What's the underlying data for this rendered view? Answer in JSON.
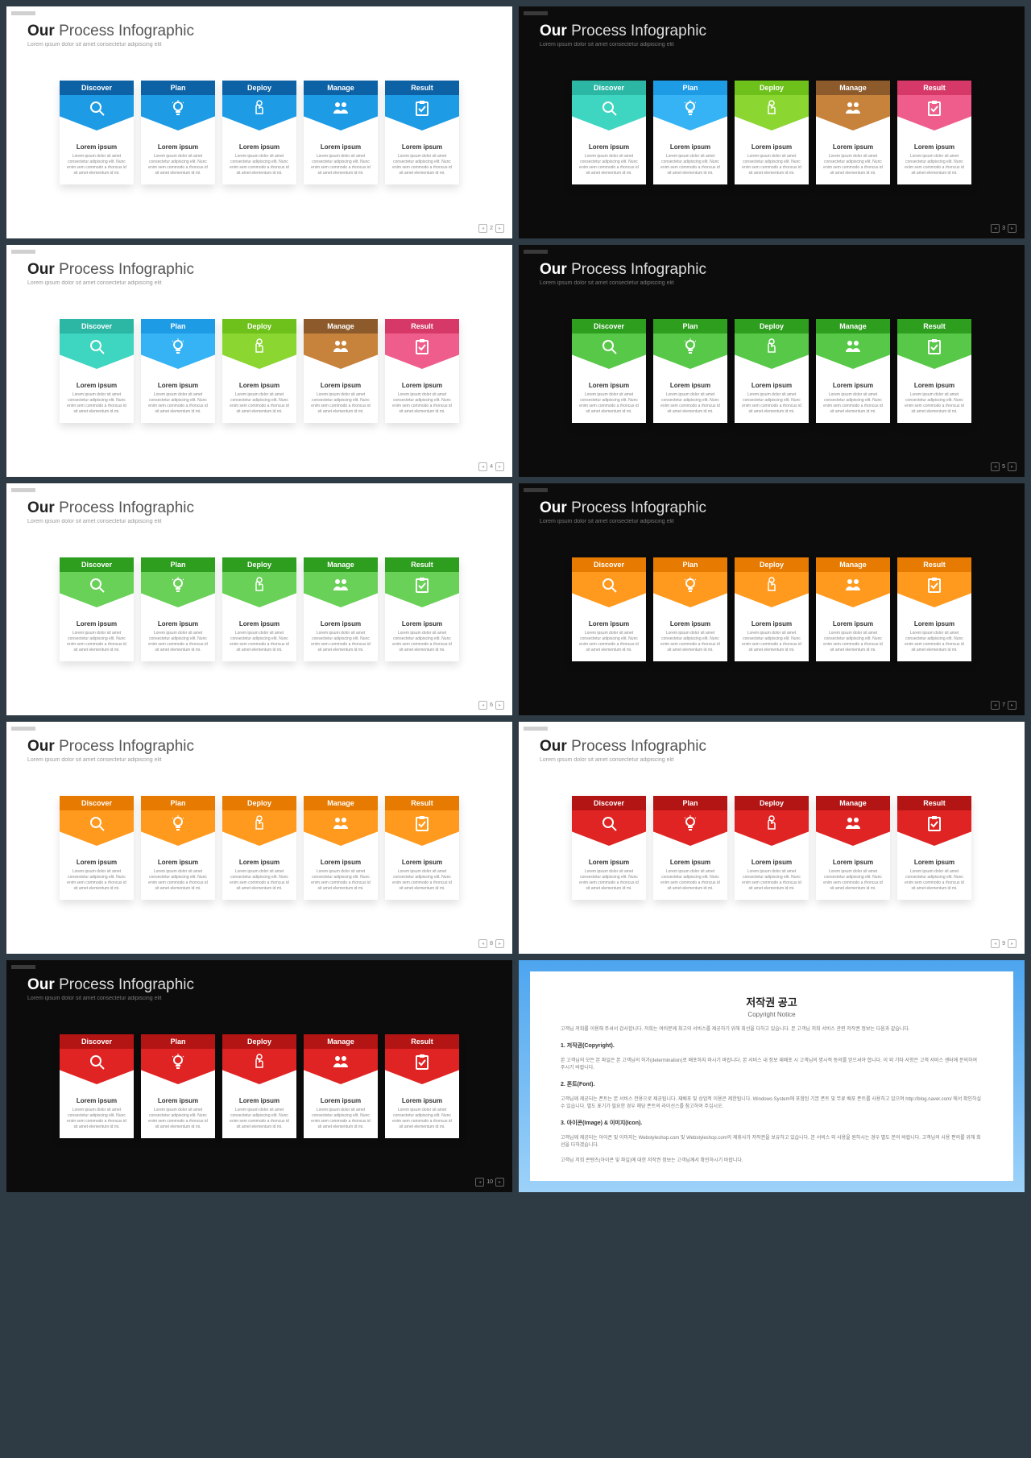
{
  "header": {
    "bold": "Our",
    "rest": "Process Infographic",
    "sub": "Lorem ipsum dolor sit amet consectetur adipiscing elit"
  },
  "steps": [
    "Discover",
    "Plan",
    "Deploy",
    "Manage",
    "Result"
  ],
  "card_title": "Lorem ipsum",
  "card_body": "Lorem ipsum dolor sit amet consectetur adipiscing elit. Nunc enim sem commodo a rhoncus id sit amet elementum id mi.",
  "icons": [
    "search",
    "bulb",
    "hand",
    "team",
    "check"
  ],
  "slides": [
    {
      "bg": "light",
      "page": 2,
      "tab": [
        "#0d62a6",
        "#0d62a6",
        "#0d62a6",
        "#0d62a6",
        "#0d62a6"
      ],
      "chev": [
        "#1e9be5",
        "#1e9be5",
        "#1e9be5",
        "#1e9be5",
        "#1e9be5"
      ]
    },
    {
      "bg": "dark",
      "page": 3,
      "tab": [
        "#2cb7a5",
        "#1e9be5",
        "#6ec11a",
        "#8c5a2b",
        "#d63967"
      ],
      "chev": [
        "#3ed5c1",
        "#35b3f4",
        "#8bd631",
        "#c7823c",
        "#ef5d8d"
      ]
    },
    {
      "bg": "light",
      "page": 4,
      "tab": [
        "#2cb7a5",
        "#1e9be5",
        "#6ec11a",
        "#8c5a2b",
        "#d63967"
      ],
      "chev": [
        "#3ed5c1",
        "#35b3f4",
        "#8bd631",
        "#c7823c",
        "#ef5d8d"
      ]
    },
    {
      "bg": "dark",
      "page": 5,
      "tab": [
        "#2e9e1e",
        "#2e9e1e",
        "#2e9e1e",
        "#2e9e1e",
        "#2e9e1e"
      ],
      "chev": [
        "#57c847",
        "#57c847",
        "#57c847",
        "#57c847",
        "#57c847"
      ]
    },
    {
      "bg": "light",
      "page": 6,
      "tab": [
        "#2e9e1e",
        "#2e9e1e",
        "#2e9e1e",
        "#2e9e1e",
        "#2e9e1e"
      ],
      "chev": [
        "#69d158",
        "#69d158",
        "#69d158",
        "#69d158",
        "#69d158"
      ]
    },
    {
      "bg": "dark",
      "page": 7,
      "tab": [
        "#e77a00",
        "#e77a00",
        "#e77a00",
        "#e77a00",
        "#e77a00"
      ],
      "chev": [
        "#ff9a1f",
        "#ff9a1f",
        "#ff9a1f",
        "#ff9a1f",
        "#ff9a1f"
      ]
    },
    {
      "bg": "light",
      "page": 8,
      "tab": [
        "#e77a00",
        "#e77a00",
        "#e77a00",
        "#e77a00",
        "#e77a00"
      ],
      "chev": [
        "#ff9a1f",
        "#ff9a1f",
        "#ff9a1f",
        "#ff9a1f",
        "#ff9a1f"
      ]
    },
    {
      "bg": "light",
      "page": 9,
      "tab": [
        "#b31414",
        "#b31414",
        "#b31414",
        "#b31414",
        "#b31414"
      ],
      "chev": [
        "#e02424",
        "#e02424",
        "#e02424",
        "#e02424",
        "#e02424"
      ]
    },
    {
      "bg": "dark",
      "page": 10,
      "tab": [
        "#b31414",
        "#b31414",
        "#b31414",
        "#b31414",
        "#b31414"
      ],
      "chev": [
        "#e02424",
        "#e02424",
        "#e02424",
        "#e02424",
        "#e02424"
      ]
    }
  ],
  "copyright": {
    "title": "저작권 공고",
    "sub": "Copyright Notice",
    "intro": "고객님 저희를 이용해 주셔서 감사합니다. 저희는 여러분께 최고의 서비스를 제공하기 위해 최선을 다하고 있습니다. 본 고객님 저희 서비스 관련 저작권 정보는 다음과 같습니다.",
    "h1": "1. 저작권(Copyright).",
    "p1": "본 고객님의 모든 본 파일은 본 고객님의 허가(determination)로 배포하지 마시기 바랍니다. 본 서비스 내 정보 재배포 시 고객님의 명시적 동의를 얻으셔야 합니다. 이 외 기타 사항은 고객 서비스 센터에 문의하여 주시기 바랍니다.",
    "h2": "2. 폰트(Font).",
    "p2": "고객님께 제공되는 폰트는 본 서비스 전용으로 제공됩니다. 재배포 및 상업적 이용은 제한됩니다. Windows System에 포함된 기본 폰트 및 무료 배포 폰트를 사용하고 있으며 http://blog.naver.com/ 에서 확인하실 수 있습니다. 별도 표기가 필요한 경우 해당 폰트의 라이선스를 참고하여 주십시오.",
    "h3": "3. 아이콘(Image) & 이미지(Icon).",
    "p3": "고객님께 제공되는 아이콘 및 이미지는 Webstyleshop.com 및 Webstyleshop.com의 제휴사가 저작권을 보유하고 있습니다. 본 서비스 외 사용을 원하시는 경우 별도 문의 바랍니다. 고객님의 사용 편의를 위해 최선을 다하겠습니다.",
    "outro": "고객님 저희 콘텐츠(아이콘 및 파일)에 대한 저작권 정보는 고객님께서 확인하시기 바랍니다."
  }
}
